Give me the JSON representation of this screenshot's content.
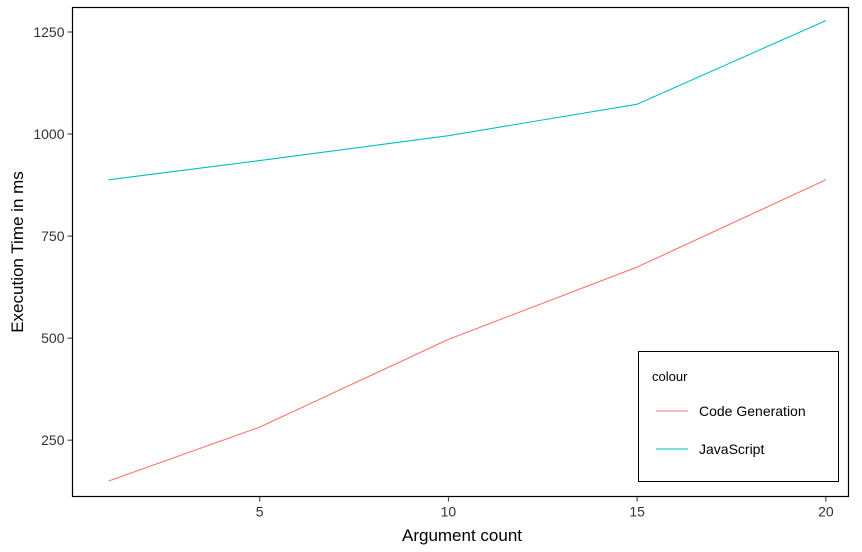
{
  "chart_data": {
    "type": "line",
    "title": "",
    "xlabel": "Argument count",
    "ylabel": "Execution Time in ms",
    "xlim": [
      0.04,
      20.6
    ],
    "ylim": [
      112,
      1310
    ],
    "x_ticks": [
      5,
      10,
      15,
      20
    ],
    "y_ticks": [
      250,
      500,
      750,
      1000,
      1250
    ],
    "x_tick_labels": [
      "5",
      "10",
      "15",
      "20"
    ],
    "y_tick_labels": [
      "250",
      "500",
      "750",
      "1000",
      "1250"
    ],
    "grid": false,
    "legend": {
      "title": "colour",
      "placement": "bottom-right",
      "entries": [
        "Code Generation",
        "JavaScript"
      ]
    },
    "series": [
      {
        "name": "Code Generation",
        "color": "#F8766D",
        "x": [
          1,
          5,
          10,
          15,
          20
        ],
        "values": [
          150,
          282,
          497,
          674,
          888
        ]
      },
      {
        "name": "JavaScript",
        "color": "#00BFC4",
        "x": [
          1,
          5,
          10,
          15,
          20
        ],
        "values": [
          888,
          935,
          996,
          1073,
          1278
        ]
      }
    ]
  }
}
